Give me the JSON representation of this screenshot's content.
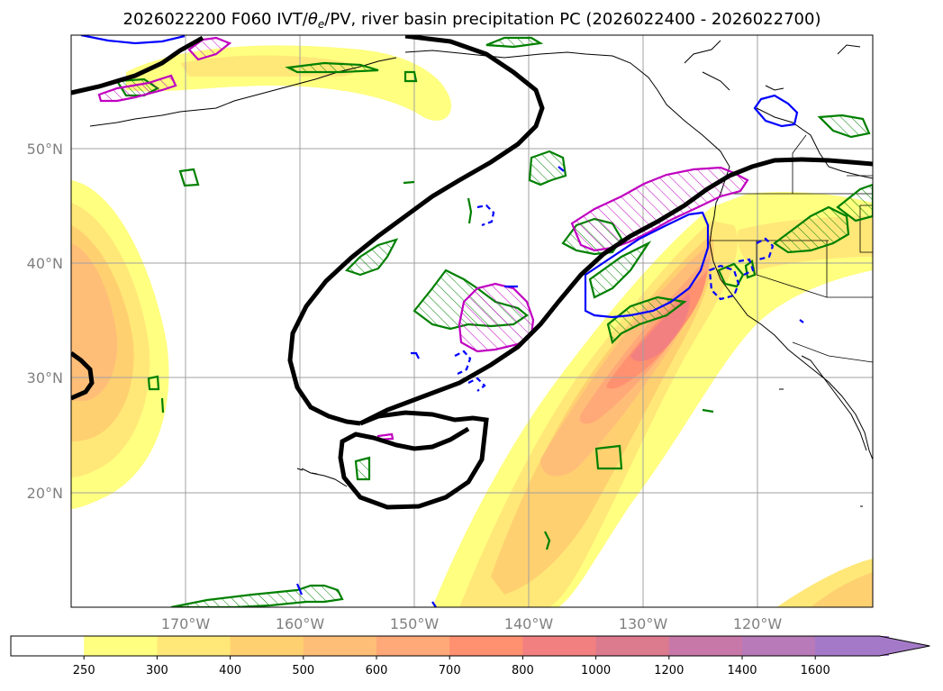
{
  "title": "2026022200 F060 IVT/θe/PV, river basin precipitation PC (2026022400 - 2026022700)",
  "title_parts": {
    "prefix": "2026022200 F060 IVT/",
    "theta": "θ",
    "sub": "e",
    "suffix": "/PV, river basin precipitation PC (2026022400 - 2026022700)"
  },
  "lat_labels": [
    "50°N",
    "40°N",
    "30°N",
    "20°N"
  ],
  "lon_labels": [
    "170°W",
    "160°W",
    "150°W",
    "140°W",
    "130°W",
    "120°W"
  ],
  "colorbar": {
    "ticks": [
      "250",
      "300",
      "400",
      "500",
      "600",
      "700",
      "800",
      "1000",
      "1200",
      "1400",
      "1600"
    ],
    "colors": [
      "#ffffff",
      "#ffff80",
      "#ffe878",
      "#ffd070",
      "#ffbe78",
      "#ffa878",
      "#ff9070",
      "#f28080",
      "#dc7a8e",
      "#c878a8",
      "#b87ab8",
      "#a47ac8"
    ],
    "extend": "max"
  },
  "colors": {
    "pv_contour": "#000000",
    "green_contour": "#008000",
    "magenta_contour": "#c000c0",
    "blue_contour": "#0000ff",
    "coastline": "#000000",
    "grid": "#a0a0a0",
    "ocean": "#ffffff"
  }
}
